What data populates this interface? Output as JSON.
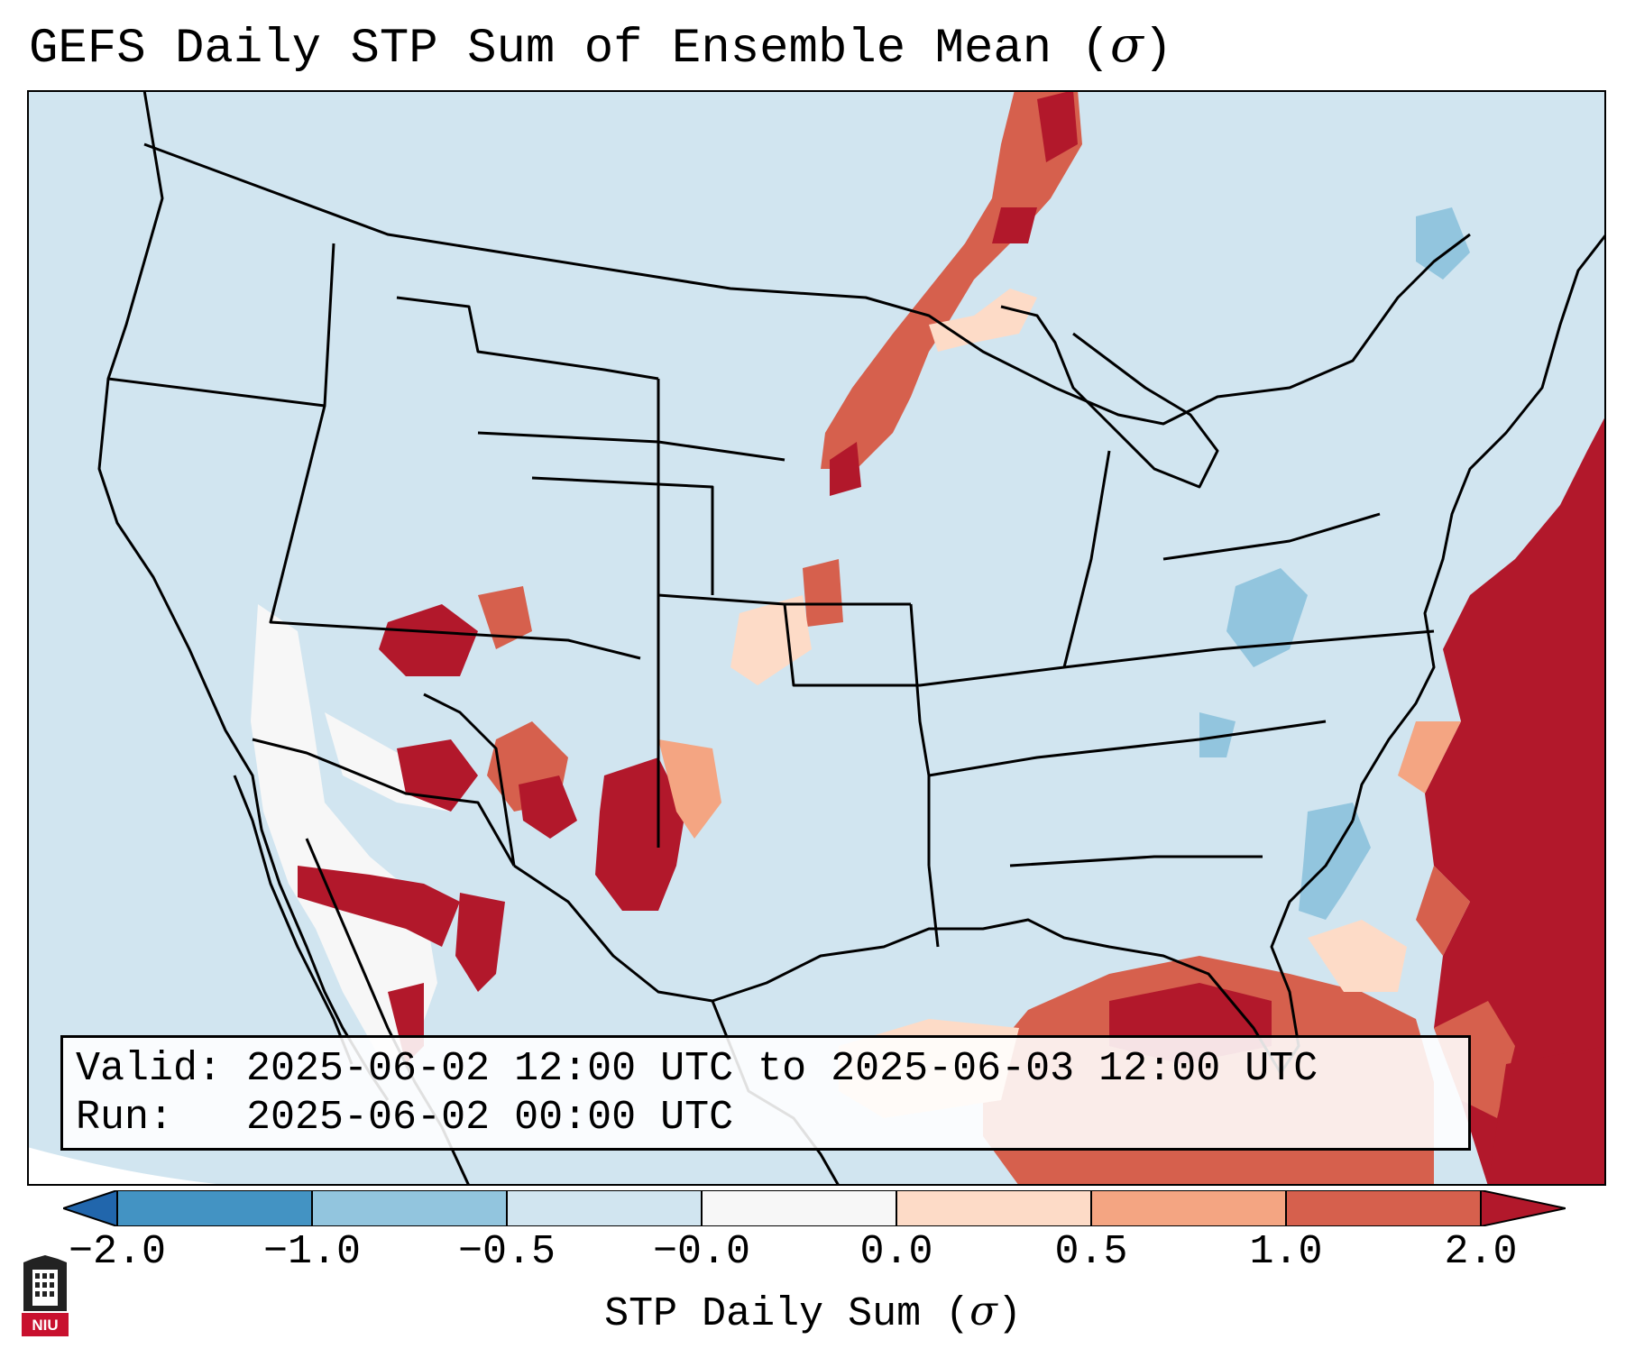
{
  "title": {
    "text": "GEFS Daily STP Sum of Ensemble Mean (",
    "symbol": "σ",
    "close": ")"
  },
  "info": {
    "valid_line": "Valid: 2025-06-02 12:00 UTC to 2025-06-03 12:00 UTC",
    "run_line": "Run:   2025-06-02 00:00 UTC"
  },
  "colorbar": {
    "ticks": [
      "−2.0",
      "−1.0",
      "−0.5",
      "−0.0",
      "0.0",
      "0.5",
      "1.0",
      "2.0"
    ],
    "bins": [
      {
        "range": "< -2.0",
        "color": "#2166ac"
      },
      {
        "range": "-2.0 to -1.0",
        "color": "#4393c3"
      },
      {
        "range": "-1.0 to -0.5",
        "color": "#92c5de"
      },
      {
        "range": "-0.5 to -0.0",
        "color": "#d1e5f0"
      },
      {
        "range": "-0.0 to 0.0",
        "color": "#f7f7f7"
      },
      {
        "range": "0.0 to 0.5",
        "color": "#fddbc7"
      },
      {
        "range": "0.5 to 1.0",
        "color": "#f4a582"
      },
      {
        "range": "1.0 to 2.0",
        "color": "#d6604d"
      },
      {
        "range": "> 2.0",
        "color": "#b2182b"
      }
    ],
    "label": {
      "text": "STP Daily Sum (",
      "symbol": "σ",
      "close": ")"
    }
  },
  "map": {
    "background_color": "#d1e5f0",
    "regions": [
      {
        "name": "gulf-stream-offshore-east",
        "value": 2.5,
        "color": "#b2182b"
      },
      {
        "name": "gulf-of-mexico-south",
        "value": 1.5,
        "color": "#d6604d"
      },
      {
        "name": "caribbean",
        "value": 2.5,
        "color": "#b2182b"
      },
      {
        "name": "upper-midwest-band",
        "value": 1.5,
        "color": "#d6604d"
      },
      {
        "name": "southwest-new-mexico",
        "value": 2.5,
        "color": "#b2182b"
      },
      {
        "name": "baja-northwest-mexico",
        "value": 0.0,
        "color": "#f7f7f7"
      },
      {
        "name": "southeast-coast",
        "value": -0.7,
        "color": "#92c5de"
      },
      {
        "name": "ohio-valley",
        "value": -0.7,
        "color": "#92c5de"
      }
    ]
  },
  "logo": {
    "text": "NIU"
  }
}
